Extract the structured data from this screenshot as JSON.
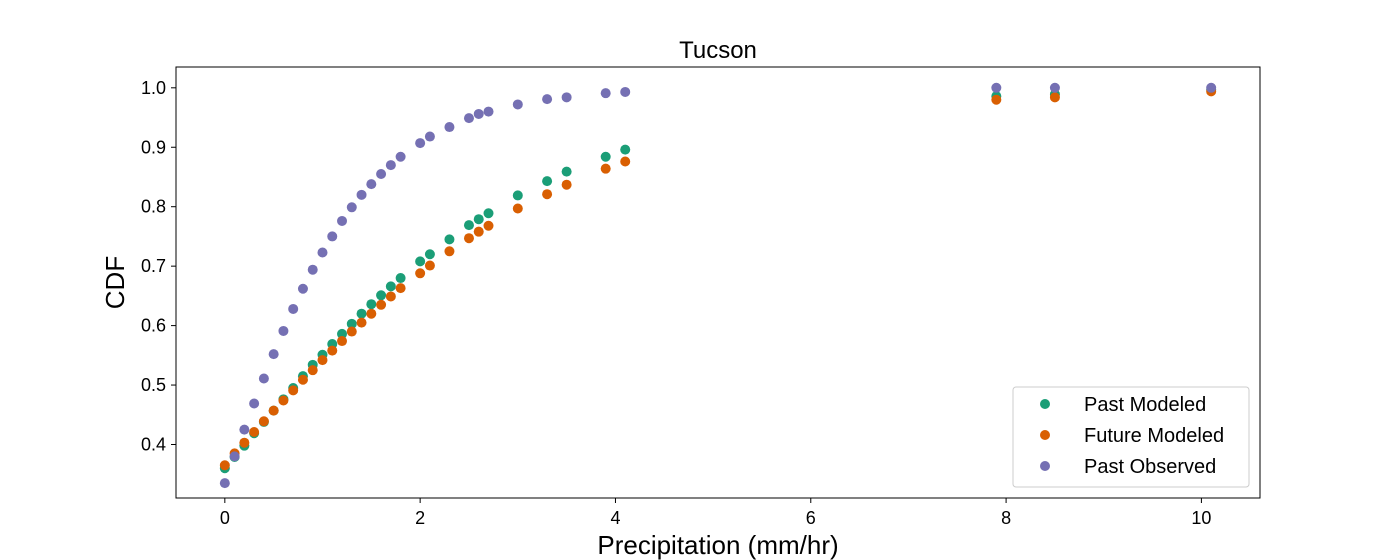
{
  "chart_data": {
    "type": "scatter",
    "title": "Tucson",
    "xlabel": "Precipitation (mm/hr)",
    "ylabel": "CDF",
    "xlim": [
      -0.5,
      10.6
    ],
    "ylim": [
      0.31,
      1.035
    ],
    "xticks": [
      0,
      2,
      4,
      6,
      8,
      10
    ],
    "yticks": [
      0.4,
      0.5,
      0.6,
      0.7,
      0.8,
      0.9,
      1.0
    ],
    "xtick_labels": [
      "0",
      "2",
      "4",
      "6",
      "8",
      "10"
    ],
    "ytick_labels": [
      "0.4",
      "0.5",
      "0.6",
      "0.7",
      "0.8",
      "0.9",
      "1.0"
    ],
    "grid": false,
    "legend_position": "lower-right",
    "series": [
      {
        "name": "Past Modeled",
        "color": "#1b9e77",
        "points": [
          [
            0.0,
            0.36
          ],
          [
            0.1,
            0.379
          ],
          [
            0.2,
            0.398
          ],
          [
            0.3,
            0.419
          ],
          [
            0.4,
            0.438
          ],
          [
            0.5,
            0.457
          ],
          [
            0.6,
            0.476
          ],
          [
            0.7,
            0.495
          ],
          [
            0.8,
            0.515
          ],
          [
            0.9,
            0.534
          ],
          [
            1.0,
            0.551
          ],
          [
            1.1,
            0.569
          ],
          [
            1.2,
            0.586
          ],
          [
            1.3,
            0.603
          ],
          [
            1.4,
            0.62
          ],
          [
            1.5,
            0.636
          ],
          [
            1.6,
            0.651
          ],
          [
            1.7,
            0.666
          ],
          [
            1.8,
            0.68
          ],
          [
            2.0,
            0.708
          ],
          [
            2.1,
            0.72
          ],
          [
            2.3,
            0.745
          ],
          [
            2.5,
            0.769
          ],
          [
            2.6,
            0.779
          ],
          [
            2.7,
            0.789
          ],
          [
            3.0,
            0.819
          ],
          [
            3.3,
            0.843
          ],
          [
            3.5,
            0.859
          ],
          [
            3.9,
            0.884
          ],
          [
            4.1,
            0.896
          ],
          [
            7.9,
            0.986
          ],
          [
            8.5,
            0.989
          ],
          [
            10.1,
            0.997
          ]
        ]
      },
      {
        "name": "Future Modeled",
        "color": "#d95f02",
        "points": [
          [
            0.0,
            0.365
          ],
          [
            0.1,
            0.385
          ],
          [
            0.2,
            0.403
          ],
          [
            0.3,
            0.421
          ],
          [
            0.4,
            0.439
          ],
          [
            0.5,
            0.457
          ],
          [
            0.6,
            0.474
          ],
          [
            0.7,
            0.491
          ],
          [
            0.8,
            0.509
          ],
          [
            0.9,
            0.525
          ],
          [
            1.0,
            0.542
          ],
          [
            1.1,
            0.558
          ],
          [
            1.2,
            0.574
          ],
          [
            1.3,
            0.59
          ],
          [
            1.4,
            0.605
          ],
          [
            1.5,
            0.62
          ],
          [
            1.6,
            0.635
          ],
          [
            1.7,
            0.649
          ],
          [
            1.8,
            0.663
          ],
          [
            2.0,
            0.688
          ],
          [
            2.1,
            0.701
          ],
          [
            2.3,
            0.725
          ],
          [
            2.5,
            0.747
          ],
          [
            2.6,
            0.758
          ],
          [
            2.7,
            0.768
          ],
          [
            3.0,
            0.797
          ],
          [
            3.3,
            0.821
          ],
          [
            3.5,
            0.837
          ],
          [
            3.9,
            0.864
          ],
          [
            4.1,
            0.876
          ],
          [
            7.9,
            0.98
          ],
          [
            8.5,
            0.984
          ],
          [
            10.1,
            0.994
          ]
        ]
      },
      {
        "name": "Past Observed",
        "color": "#7570b3",
        "points": [
          [
            0.0,
            0.335
          ],
          [
            0.1,
            0.38
          ],
          [
            0.2,
            0.425
          ],
          [
            0.3,
            0.469
          ],
          [
            0.4,
            0.511
          ],
          [
            0.5,
            0.552
          ],
          [
            0.6,
            0.591
          ],
          [
            0.7,
            0.628
          ],
          [
            0.8,
            0.662
          ],
          [
            0.9,
            0.694
          ],
          [
            1.0,
            0.723
          ],
          [
            1.1,
            0.75
          ],
          [
            1.2,
            0.776
          ],
          [
            1.3,
            0.799
          ],
          [
            1.4,
            0.82
          ],
          [
            1.5,
            0.838
          ],
          [
            1.6,
            0.855
          ],
          [
            1.7,
            0.87
          ],
          [
            1.8,
            0.884
          ],
          [
            2.0,
            0.907
          ],
          [
            2.1,
            0.918
          ],
          [
            2.3,
            0.934
          ],
          [
            2.5,
            0.949
          ],
          [
            2.6,
            0.956
          ],
          [
            2.7,
            0.96
          ],
          [
            3.0,
            0.972
          ],
          [
            3.3,
            0.981
          ],
          [
            3.5,
            0.984
          ],
          [
            3.9,
            0.991
          ],
          [
            4.1,
            0.993
          ],
          [
            7.9,
            1.0
          ],
          [
            8.5,
            1.0
          ],
          [
            10.1,
            1.0
          ]
        ]
      }
    ]
  }
}
